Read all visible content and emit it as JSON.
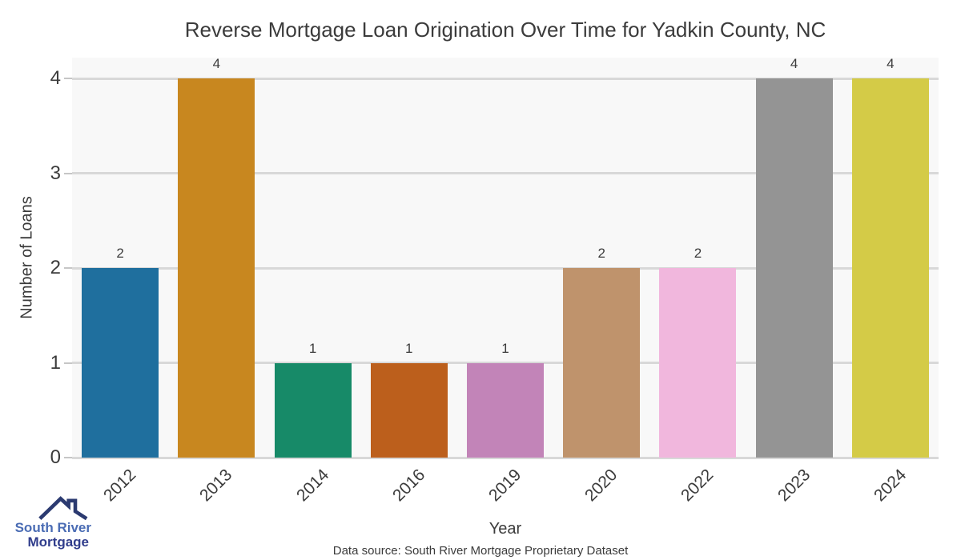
{
  "title": "Reverse Mortgage Loan Origination Over Time for Yadkin County, NC",
  "chart_data": {
    "type": "bar",
    "categories": [
      "2012",
      "2013",
      "2014",
      "2016",
      "2019",
      "2020",
      "2022",
      "2023",
      "2024"
    ],
    "values": [
      2,
      4,
      1,
      1,
      1,
      2,
      2,
      4,
      4
    ],
    "bar_colors": [
      "#1f6f9e",
      "#c8871f",
      "#178a68",
      "#bc5f1c",
      "#c284b8",
      "#bf936c",
      "#f1b7dd",
      "#949494",
      "#d4cb47"
    ],
    "title": "Reverse Mortgage Loan Origination Over Time for Yadkin County, NC",
    "xlabel": "Year",
    "ylabel": "Number of Loans",
    "ylim": [
      0,
      4
    ],
    "yticks": [
      0,
      1,
      2,
      3,
      4
    ],
    "grid": "horizontal",
    "legend": "none",
    "plot_background": "#f8f8f8",
    "gridline_color": "#d8d8d8"
  },
  "caption": "Data source: South River Mortgage Proprietary Dataset",
  "logo": {
    "icon": "house-roof-icon",
    "line1": "South River",
    "line2": "Mortgage",
    "line1_color": "#4a6cb4",
    "line2_color": "#303d8c",
    "roof_color": "#2b3a70"
  }
}
